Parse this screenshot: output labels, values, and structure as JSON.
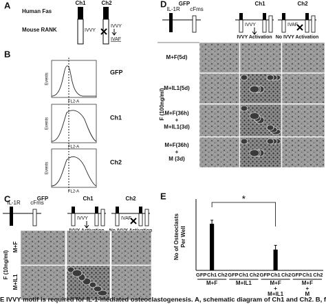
{
  "panel_a": {
    "label": "A",
    "rows": [
      "Human Fas",
      "Mouse RANK"
    ],
    "columns": [
      "Ch1",
      "Ch2"
    ],
    "ch1_motif": "IVVY",
    "ch2_motif": "IVVY",
    "ch2_mutant": "IVAF"
  },
  "panel_b": {
    "label": "B",
    "histograms": [
      {
        "name": "GFP",
        "ylabel": "Events",
        "xlabel": "FL2-A"
      },
      {
        "name": "Ch1",
        "ylabel": "Events",
        "xlabel": "FL2-A"
      },
      {
        "name": "Ch2",
        "ylabel": "Events",
        "xlabel": "FL2-A"
      }
    ]
  },
  "panel_c": {
    "label": "C",
    "columns": [
      "GFP",
      "Ch1",
      "Ch2"
    ],
    "receptors": [
      "IL-1R",
      "cFms"
    ],
    "motifs": [
      "IVVY",
      "IVAF"
    ],
    "activation": [
      "IVVY Activation",
      "No IVVY Activation"
    ],
    "rows": [
      "M+F",
      "M+IL1"
    ],
    "side_label": "F (10ng/ml)"
  },
  "panel_d": {
    "label": "D",
    "columns": [
      "GFP",
      "Ch1",
      "Ch2"
    ],
    "receptors": [
      "IL-1R",
      "cFms"
    ],
    "motifs": [
      "IVVY",
      "IVAF"
    ],
    "activation": [
      "IVVY Activation",
      "No IVVY Activation"
    ],
    "rows": [
      [
        "M+F(5d)"
      ],
      [
        "M+IL1(5d)"
      ],
      [
        "M+F(36h)",
        "+",
        "M+IL1(3d)"
      ],
      [
        "M+F(36h)",
        "+",
        "M (3d)"
      ]
    ],
    "side_label": "F (100ng/ml)"
  },
  "chart_data": {
    "type": "bar",
    "label": "E",
    "ylabel": [
      "No of Osteoclasts",
      "Per Well"
    ],
    "categories": [
      "GFP",
      "Ch1",
      "Ch2",
      "GFP",
      "Ch1",
      "Ch2",
      "GFP",
      "Ch1",
      "Ch2",
      "GFP",
      "Ch1",
      "Ch2"
    ],
    "groups": [
      [
        "M+F"
      ],
      [
        "M+IL1"
      ],
      [
        "M+F",
        "+",
        "M+IL1"
      ],
      [
        "M+F",
        "+",
        "M"
      ]
    ],
    "values": [
      0,
      65,
      0,
      0,
      0,
      0,
      0,
      29,
      0,
      0,
      0,
      0
    ],
    "errors": [
      0,
      5,
      0,
      0,
      0,
      0,
      0,
      6,
      0,
      0,
      0,
      0
    ],
    "ylim": [
      0,
      90
    ],
    "color": "#000000",
    "annotation": "*"
  },
  "caption": "E IVVY motif is required for IL-1-mediated osteoclastogenesis. A, schematic diagram of Ch1 and Ch2. B, flow c"
}
